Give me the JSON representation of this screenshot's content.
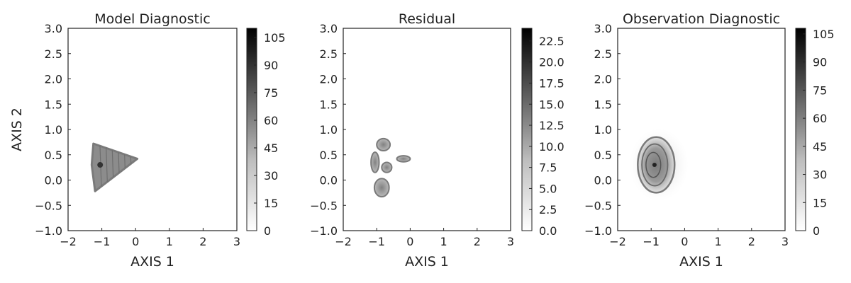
{
  "chart_data": [
    {
      "type": "heatmap",
      "title": "Model Diagnostic",
      "xlabel": "AXIS 1",
      "ylabel": "AXIS 2",
      "xlim": [
        -2,
        3
      ],
      "ylim": [
        -1,
        3
      ],
      "x_ticks": [
        -2,
        -1,
        0,
        1,
        2,
        3
      ],
      "x_tick_labels": [
        "−2",
        "−1",
        "0",
        "1",
        "2",
        "3"
      ],
      "y_ticks": [
        -1.0,
        -0.5,
        0.0,
        0.5,
        1.0,
        1.5,
        2.0,
        2.5,
        3.0
      ],
      "y_tick_labels": [
        "−1.0",
        "−0.5",
        "0.0",
        "0.5",
        "1.0",
        "1.5",
        "2.0",
        "2.5",
        "3.0"
      ],
      "colorbar": {
        "min": 0,
        "max": 110,
        "ticks": [
          0,
          15,
          30,
          45,
          60,
          75,
          90,
          105
        ],
        "tick_labels": [
          "0",
          "15",
          "30",
          "45",
          "60",
          "75",
          "90",
          "105"
        ]
      },
      "density_region": {
        "shape": "wedge",
        "vertices": [
          [
            -1.25,
            0.72
          ],
          [
            -1.3,
            0.3
          ],
          [
            -1.2,
            -0.22
          ],
          [
            0.05,
            0.42
          ]
        ],
        "peak": [
          -1.05,
          0.3
        ]
      }
    },
    {
      "type": "heatmap",
      "title": "Residual",
      "xlabel": "AXIS 1",
      "ylabel": "",
      "xlim": [
        -2,
        3
      ],
      "ylim": [
        -1,
        3
      ],
      "x_ticks": [
        -2,
        -1,
        0,
        1,
        2,
        3
      ],
      "x_tick_labels": [
        "−2",
        "−1",
        "0",
        "1",
        "2",
        "3"
      ],
      "y_ticks": [
        -1.0,
        -0.5,
        0.0,
        0.5,
        1.0,
        1.5,
        2.0,
        2.5,
        3.0
      ],
      "y_tick_labels": [
        "−1.0",
        "−0.5",
        "0.0",
        "0.5",
        "1.0",
        "1.5",
        "2.0",
        "2.5",
        "3.0"
      ],
      "colorbar": {
        "min": 0,
        "max": 24,
        "ticks": [
          0.0,
          2.5,
          5.0,
          7.5,
          10.0,
          12.5,
          15.0,
          17.5,
          20.0,
          22.5
        ],
        "tick_labels": [
          "0.0",
          "2.5",
          "5.0",
          "7.5",
          "10.0",
          "12.5",
          "15.0",
          "17.5",
          "20.0",
          "22.5"
        ]
      },
      "density_region": {
        "shape": "clusters",
        "blobs": [
          [
            -0.8,
            0.7,
            0.2,
            0.12
          ],
          [
            -1.05,
            0.35,
            0.12,
            0.2
          ],
          [
            -0.7,
            0.25,
            0.15,
            0.1
          ],
          [
            -0.85,
            -0.15,
            0.22,
            0.18
          ],
          [
            -0.2,
            0.42,
            0.2,
            0.06
          ]
        ]
      }
    },
    {
      "type": "heatmap",
      "title": "Observation Diagnostic",
      "xlabel": "AXIS 1",
      "ylabel": "",
      "xlim": [
        -2,
        3
      ],
      "ylim": [
        -1,
        3
      ],
      "x_ticks": [
        -2,
        -1,
        0,
        1,
        2,
        3
      ],
      "x_tick_labels": [
        "−2",
        "−1",
        "0",
        "1",
        "2",
        "3"
      ],
      "y_ticks": [
        -1.0,
        -0.5,
        0.0,
        0.5,
        1.0,
        1.5,
        2.0,
        2.5,
        3.0
      ],
      "y_tick_labels": [
        "−1.0",
        "−0.5",
        "0.0",
        "0.5",
        "1.0",
        "1.5",
        "2.0",
        "2.5",
        "3.0"
      ],
      "colorbar": {
        "min": 0,
        "max": 108,
        "ticks": [
          0,
          15,
          30,
          45,
          60,
          75,
          90,
          105
        ],
        "tick_labels": [
          "0",
          "15",
          "30",
          "45",
          "60",
          "75",
          "90",
          "105"
        ]
      },
      "density_region": {
        "shape": "oval",
        "center": [
          -0.85,
          0.3
        ],
        "radii": [
          0.55,
          0.55
        ],
        "peak": [
          -0.9,
          0.3
        ]
      }
    }
  ]
}
